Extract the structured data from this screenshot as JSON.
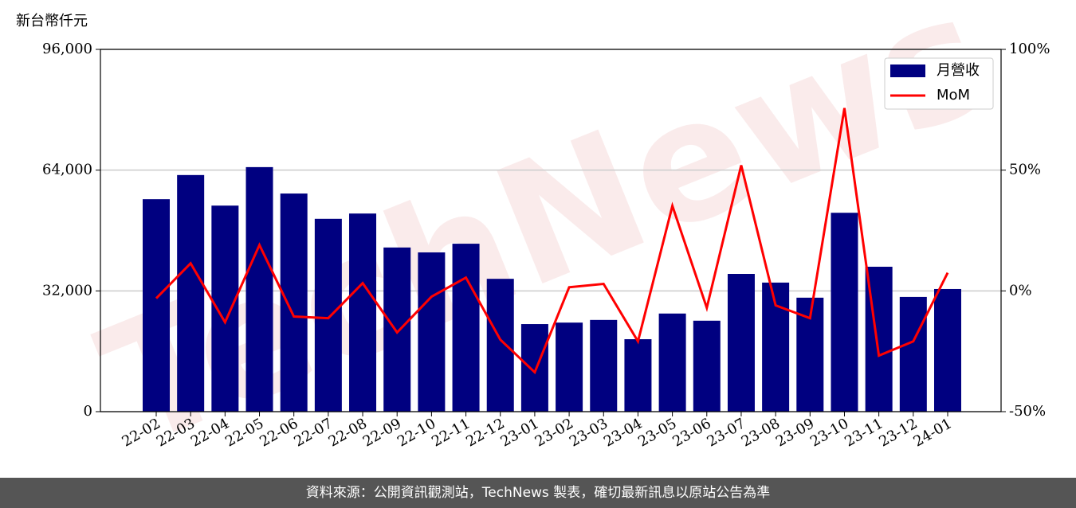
{
  "chart_data": {
    "type": "bar",
    "y_label": "新台幣仟元",
    "watermark": "TechNews",
    "categories": [
      "22-02",
      "22-03",
      "22-04",
      "22-05",
      "22-06",
      "22-07",
      "22-08",
      "22-09",
      "22-10",
      "22-11",
      "22-12",
      "23-01",
      "23-02",
      "23-03",
      "23-04",
      "23-05",
      "23-06",
      "23-07",
      "23-08",
      "23-09",
      "23-10",
      "23-11",
      "23-12",
      "24-01"
    ],
    "series": [
      {
        "name": "月營收",
        "color": "#000080",
        "type": "bar",
        "values": [
          56300,
          62700,
          54600,
          64800,
          57800,
          51100,
          52500,
          43500,
          42200,
          44500,
          35200,
          23200,
          23600,
          24300,
          19200,
          26000,
          24100,
          36500,
          34200,
          30200,
          52700,
          38400,
          30400,
          32500
        ]
      },
      {
        "name": "MoM",
        "color": "#ff0000",
        "type": "line",
        "axis": "y2",
        "values": [
          -3.1,
          11.4,
          -13,
          19,
          -10.6,
          -11.3,
          3.2,
          -17.2,
          -2.4,
          5.5,
          -20.2,
          -33.7,
          1.5,
          2.9,
          -20.9,
          35.2,
          -7,
          52,
          -6,
          -11.3,
          75.7,
          -26.8,
          -20.9,
          7.5
        ]
      }
    ],
    "ylim": [
      0,
      96000
    ],
    "yticks": [
      0,
      {
        "value": 32000,
        "label": "32,000"
      },
      {
        "value": 64000,
        "label": "64,000"
      },
      {
        "value": 96000,
        "label": "96,000"
      }
    ],
    "y2lim": [
      -50,
      100
    ],
    "y2ticks": [
      {
        "value": -50,
        "label": "-50%"
      },
      {
        "value": 0,
        "label": "0%"
      },
      {
        "value": 50,
        "label": "50%"
      },
      {
        "value": 100,
        "label": "100%"
      }
    ],
    "grid": true,
    "legend": "upper right"
  },
  "footer": "資料來源：公開資訊觀測站，TechNews 製表，確切最新訊息以原站公告為準"
}
